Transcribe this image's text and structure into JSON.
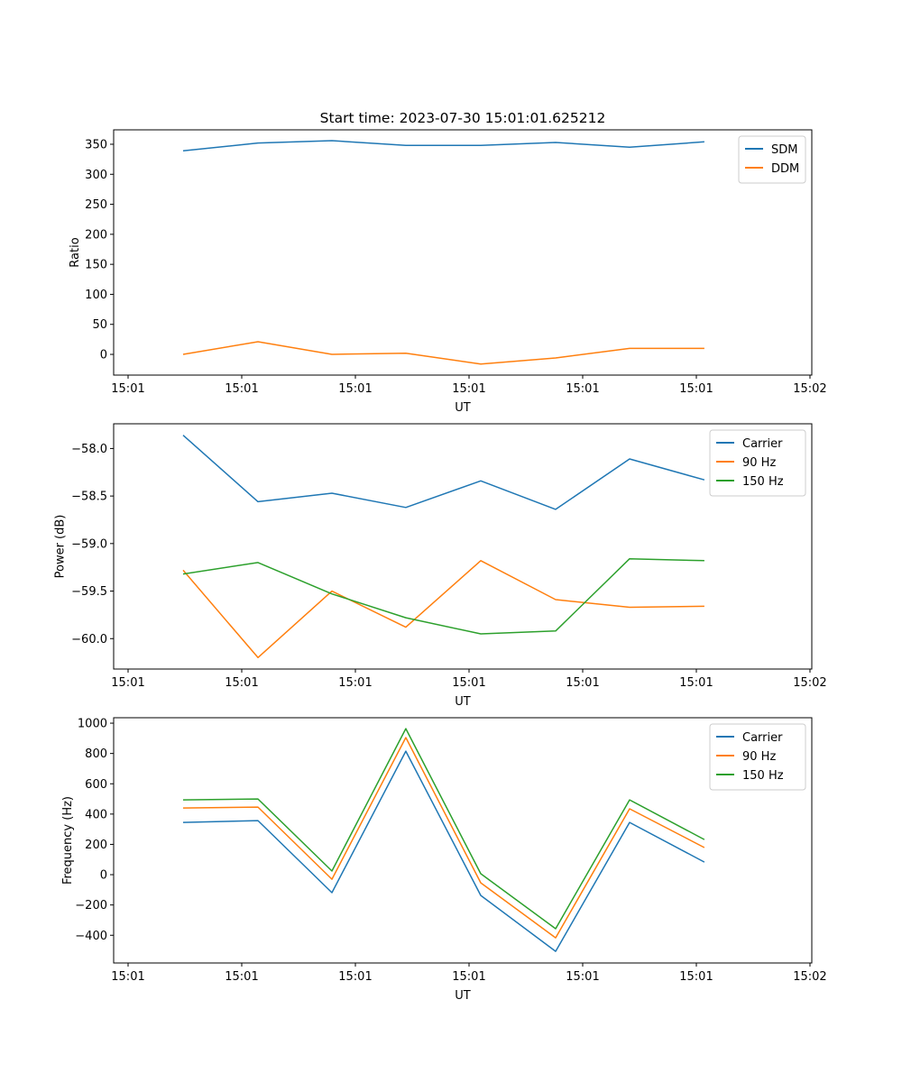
{
  "chart_data": [
    {
      "type": "line",
      "title": "Start time: 2023-07-30 15:01:01.625212",
      "xlabel": "UT",
      "ylabel": "Ratio",
      "x": [
        4.84,
        11.43,
        17.94,
        24.44,
        31.03,
        37.62,
        44.13,
        50.71
      ],
      "xlim": [
        -1.27,
        60.16
      ],
      "xticks": [
        0,
        10,
        20,
        30,
        40,
        50,
        60
      ],
      "xtick_labels": [
        "15:01",
        "15:01",
        "15:01",
        "15:01",
        "15:01",
        "15:01",
        "15:02"
      ],
      "ylim": [
        -34.5,
        374
      ],
      "yticks": [
        0,
        50,
        100,
        150,
        200,
        250,
        300,
        350
      ],
      "ytick_labels": [
        "0",
        "50",
        "100",
        "150",
        "200",
        "250",
        "300",
        "350"
      ],
      "legend_position": "top-right",
      "series": [
        {
          "name": "SDM",
          "color": "#1f77b4",
          "values": [
            339,
            352,
            356,
            348,
            348,
            353,
            345,
            354
          ]
        },
        {
          "name": "DDM",
          "color": "#ff7f0e",
          "values": [
            0,
            21,
            0,
            2,
            -16,
            -6,
            10,
            10
          ]
        }
      ]
    },
    {
      "type": "line",
      "title": "",
      "xlabel": "UT",
      "ylabel": "Power (dB)",
      "x": [
        4.84,
        11.43,
        17.94,
        24.44,
        31.03,
        37.62,
        44.13,
        50.71
      ],
      "xlim": [
        -1.27,
        60.16
      ],
      "xticks": [
        0,
        10,
        20,
        30,
        40,
        50,
        60
      ],
      "xtick_labels": [
        "15:01",
        "15:01",
        "15:01",
        "15:01",
        "15:01",
        "15:01",
        "15:02"
      ],
      "ylim": [
        -60.32,
        -57.74
      ],
      "yticks": [
        -58.0,
        -58.5,
        -59.0,
        -59.5,
        -60.0
      ],
      "ytick_labels": [
        "−58.0",
        "−58.5",
        "−59.0",
        "−59.5",
        "−60.0"
      ],
      "legend_position": "top-right",
      "series": [
        {
          "name": "Carrier",
          "color": "#1f77b4",
          "values": [
            -57.86,
            -58.56,
            -58.47,
            -58.62,
            -58.34,
            -58.64,
            -58.11,
            -58.33
          ]
        },
        {
          "name": "90 Hz",
          "color": "#ff7f0e",
          "values": [
            -59.28,
            -60.2,
            -59.5,
            -59.88,
            -59.18,
            -59.59,
            -59.67,
            -59.66
          ]
        },
        {
          "name": "150 Hz",
          "color": "#2ca02c",
          "values": [
            -59.32,
            -59.2,
            -59.53,
            -59.78,
            -59.95,
            -59.92,
            -59.16,
            -59.18
          ]
        }
      ]
    },
    {
      "type": "line",
      "title": "",
      "xlabel": "UT",
      "ylabel": "Frequency (Hz)",
      "x": [
        4.84,
        11.43,
        17.94,
        24.44,
        31.03,
        37.62,
        44.13,
        50.71
      ],
      "xlim": [
        -1.27,
        60.16
      ],
      "xticks": [
        0,
        10,
        20,
        30,
        40,
        50,
        60
      ],
      "xtick_labels": [
        "15:01",
        "15:01",
        "15:01",
        "15:01",
        "15:01",
        "15:01",
        "15:02"
      ],
      "ylim": [
        -583,
        1036
      ],
      "yticks": [
        1000,
        800,
        600,
        400,
        200,
        0,
        -200,
        -400
      ],
      "ytick_labels": [
        "1000",
        "800",
        "600",
        "400",
        "200",
        "0",
        "−200",
        "−400"
      ],
      "legend_position": "top-right",
      "series": [
        {
          "name": "Carrier",
          "color": "#1f77b4",
          "values": [
            345,
            357,
            -119,
            815,
            -137,
            -506,
            345,
            83
          ]
        },
        {
          "name": "90 Hz",
          "color": "#ff7f0e",
          "values": [
            440,
            446,
            -30,
            905,
            -54,
            -417,
            435,
            179
          ]
        },
        {
          "name": "150 Hz",
          "color": "#2ca02c",
          "values": [
            494,
            500,
            24,
            964,
            6,
            -357,
            494,
            232
          ]
        }
      ]
    }
  ]
}
